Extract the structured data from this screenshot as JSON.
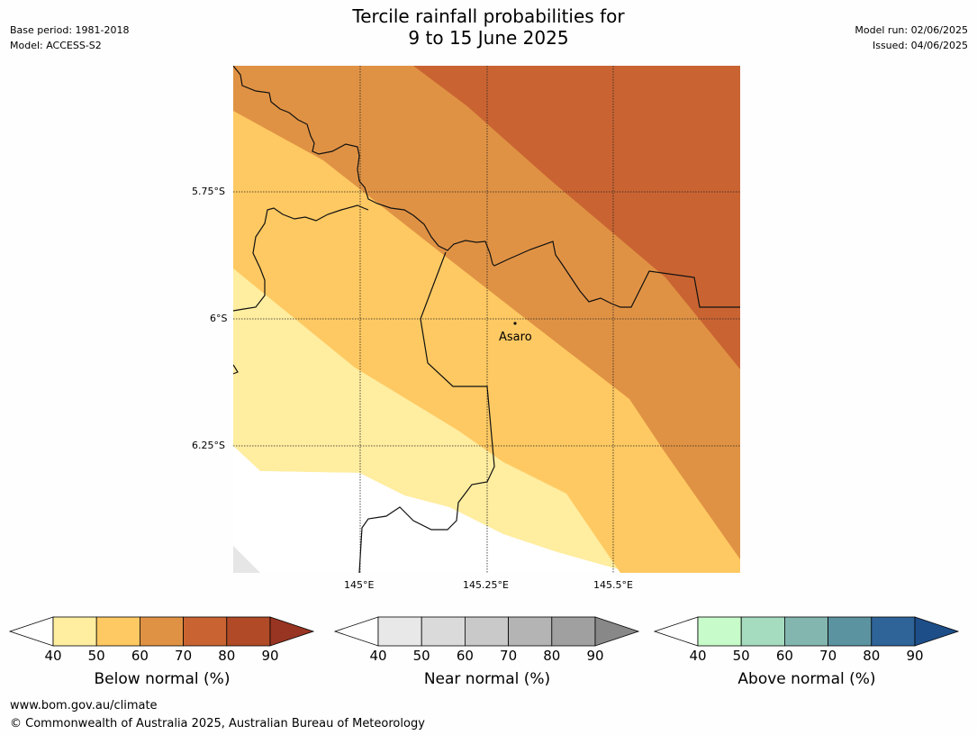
{
  "header": {
    "title_line1": "Tercile rainfall probabilities for",
    "title_line2": "9 to 15 June 2025",
    "base_period": "Base period: 1981-2018",
    "model": "Model: ACCESS-S2",
    "model_run": "Model run: 02/06/2025",
    "issued": "Issued: 04/06/2025"
  },
  "map": {
    "lat_labels": [
      "5.75°S",
      "6°S",
      "6.25°S"
    ],
    "lon_labels": [
      "145°E",
      "145.25°E",
      "145.5°E"
    ],
    "place": "Asaro"
  },
  "colorbars": [
    {
      "label": "Below normal (%)",
      "ticks": [
        "40",
        "50",
        "60",
        "70",
        "80",
        "90"
      ],
      "colors": [
        "#ffffff",
        "#ffeda0",
        "#fec962",
        "#e09244",
        "#c96432",
        "#b04a27",
        "#983422"
      ]
    },
    {
      "label": "Near normal (%)",
      "ticks": [
        "40",
        "50",
        "60",
        "70",
        "80",
        "90"
      ],
      "colors": [
        "#ffffff",
        "#e8e8e8",
        "#dadada",
        "#c9c9c9",
        "#b4b4b4",
        "#a0a0a0",
        "#888888"
      ]
    },
    {
      "label": "Above normal (%)",
      "ticks": [
        "40",
        "50",
        "60",
        "70",
        "80",
        "90"
      ],
      "colors": [
        "#ffffff",
        "#c7fbc9",
        "#a5dbbf",
        "#84b6b0",
        "#5b93a1",
        "#2f6499",
        "#1d4e88"
      ]
    }
  ],
  "footer": {
    "url": "www.bom.gov.au/climate",
    "copyright": "© Commonwealth of Australia 2025, Australian Bureau of Meteorology"
  }
}
